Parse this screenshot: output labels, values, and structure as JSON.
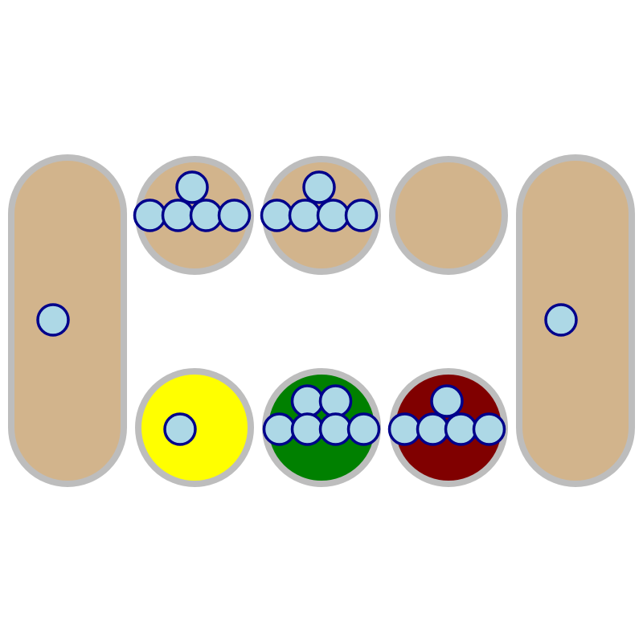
{
  "game": {
    "type": "mancala",
    "colors": {
      "background": "#ffffff",
      "pit_border": "#bdbdbd",
      "pit_default": "#d2b48c",
      "seed_fill": "#add8e6",
      "seed_stroke": "#00008b"
    },
    "stores": {
      "left": {
        "seeds": 1,
        "color": "#d2b48c"
      },
      "right": {
        "seeds": 1,
        "color": "#d2b48c"
      }
    },
    "top_row": [
      {
        "seeds": 5,
        "color": "#d2b48c"
      },
      {
        "seeds": 5,
        "color": "#d2b48c"
      },
      {
        "seeds": 0,
        "color": "#d2b48c"
      }
    ],
    "bottom_row": [
      {
        "seeds": 1,
        "color": "#ffff00",
        "highlight": "yellow"
      },
      {
        "seeds": 6,
        "color": "#008000",
        "highlight": "green"
      },
      {
        "seeds": 5,
        "color": "#800000",
        "highlight": "maroon"
      }
    ]
  }
}
